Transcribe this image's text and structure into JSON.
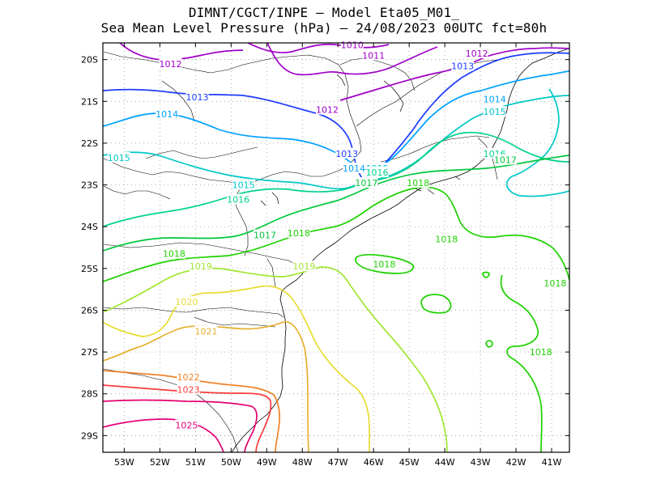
{
  "title": {
    "line1": "DIMNT/CGCT/INPE –  Model Eta05_M01_",
    "line2": "Sea Mean Level Pressure (hPa) – 24/08/2023 00UTC fct=80h"
  },
  "axes": {
    "lat_ticks": [
      "20S",
      "21S",
      "22S",
      "23S",
      "24S",
      "25S",
      "26S",
      "27S",
      "28S",
      "29S"
    ],
    "lon_ticks": [
      "53W",
      "52W",
      "51W",
      "50W",
      "49W",
      "48W",
      "47W",
      "46W",
      "45W",
      "44W",
      "43W",
      "42W",
      "41W"
    ]
  },
  "chart_data": {
    "type": "contour",
    "variable": "Sea Mean Level Pressure (hPa)",
    "lon_range": [
      -53.6,
      -40.5
    ],
    "lat_range": [
      -29.4,
      -19.6
    ],
    "isobars": [
      {
        "value": 1010,
        "color": "#a000c8"
      },
      {
        "value": 1011,
        "color": "#a000c8"
      },
      {
        "value": 1012,
        "color": "#a000c8"
      },
      {
        "value": 1013,
        "color": "#1e3cff"
      },
      {
        "value": 1014,
        "color": "#00a0ff"
      },
      {
        "value": 1015,
        "color": "#00c8c8"
      },
      {
        "value": 1016,
        "color": "#00d28c"
      },
      {
        "value": 1017,
        "color": "#00c83c"
      },
      {
        "value": 1018,
        "color": "#1ed200"
      },
      {
        "value": 1019,
        "color": "#a0e632"
      },
      {
        "value": 1020,
        "color": "#e6dc32"
      },
      {
        "value": 1021,
        "color": "#e6af2d"
      },
      {
        "value": 1022,
        "color": "#f08228"
      },
      {
        "value": 1023,
        "color": "#fa3c3c"
      },
      {
        "value": 1025,
        "color": "#e6007a"
      }
    ],
    "labels": [
      {
        "text": "1010",
        "lon": -46.6,
        "lat": -19.65,
        "color": "#a000c8"
      },
      {
        "text": "1011",
        "lon": -46.0,
        "lat": -19.9,
        "color": "#a000c8"
      },
      {
        "text": "1012",
        "lon": -51.7,
        "lat": -20.1,
        "color": "#a000c8"
      },
      {
        "text": "1012",
        "lon": -47.3,
        "lat": -21.2,
        "color": "#a000c8"
      },
      {
        "text": "1012",
        "lon": -43.1,
        "lat": -19.85,
        "color": "#a000c8"
      },
      {
        "text": "1013",
        "lon": -50.95,
        "lat": -20.9,
        "color": "#1e3cff"
      },
      {
        "text": "1013",
        "lon": -46.75,
        "lat": -22.25,
        "color": "#1e3cff"
      },
      {
        "text": "1013",
        "lon": -43.5,
        "lat": -20.15,
        "color": "#1e3cff"
      },
      {
        "text": "1014",
        "lon": -51.8,
        "lat": -21.3,
        "color": "#00a0ff"
      },
      {
        "text": "1014",
        "lon": -46.55,
        "lat": -22.6,
        "color": "#00a0ff"
      },
      {
        "text": "1014",
        "lon": -42.6,
        "lat": -20.95,
        "color": "#00a0ff"
      },
      {
        "text": "1015",
        "lon": -53.15,
        "lat": -22.35,
        "color": "#00c8c8"
      },
      {
        "text": "1015",
        "lon": -49.65,
        "lat": -23.0,
        "color": "#00c8c8"
      },
      {
        "text": "1015",
        "lon": -45.9,
        "lat": -22.6,
        "color": "#00c8c8"
      },
      {
        "text": "1015",
        "lon": -42.6,
        "lat": -21.25,
        "color": "#00c8c8"
      },
      {
        "text": "1016",
        "lon": -49.8,
        "lat": -23.35,
        "color": "#00d28c"
      },
      {
        "text": "1016",
        "lon": -45.9,
        "lat": -22.7,
        "color": "#00d28c"
      },
      {
        "text": "1016",
        "lon": -42.6,
        "lat": -22.25,
        "color": "#00d28c"
      },
      {
        "text": "1017",
        "lon": -49.05,
        "lat": -24.2,
        "color": "#00c83c"
      },
      {
        "text": "1017",
        "lon": -46.2,
        "lat": -22.95,
        "color": "#00c83c"
      },
      {
        "text": "1017",
        "lon": -42.3,
        "lat": -22.4,
        "color": "#00c83c"
      },
      {
        "text": "1018",
        "lon": -51.6,
        "lat": -24.65,
        "color": "#1ed200"
      },
      {
        "text": "1018",
        "lon": -48.1,
        "lat": -24.15,
        "color": "#1ed200"
      },
      {
        "text": "1018",
        "lon": -44.75,
        "lat": -22.95,
        "color": "#1ed200"
      },
      {
        "text": "1018",
        "lon": -43.95,
        "lat": -24.3,
        "color": "#1ed200"
      },
      {
        "text": "1018",
        "lon": -45.7,
        "lat": -24.9,
        "color": "#1ed200"
      },
      {
        "text": "1018",
        "lon": -40.9,
        "lat": -25.35,
        "color": "#1ed200"
      },
      {
        "text": "1018",
        "lon": -41.3,
        "lat": -27.0,
        "color": "#1ed200"
      },
      {
        "text": "1019",
        "lon": -50.85,
        "lat": -24.95,
        "color": "#a0e632"
      },
      {
        "text": "1019",
        "lon": -47.95,
        "lat": -24.95,
        "color": "#a0e632"
      },
      {
        "text": "1020",
        "lon": -51.25,
        "lat": -25.8,
        "color": "#e6dc32"
      },
      {
        "text": "1021",
        "lon": -50.7,
        "lat": -26.5,
        "color": "#e6af2d"
      },
      {
        "text": "1022",
        "lon": -51.2,
        "lat": -27.6,
        "color": "#f08228"
      },
      {
        "text": "1023",
        "lon": -51.2,
        "lat": -27.9,
        "color": "#fa3c3c"
      },
      {
        "text": "1025",
        "lon": -51.25,
        "lat": -28.75,
        "color": "#e6007a"
      }
    ],
    "grid": "dotted",
    "coastline": true,
    "state_borders": true
  }
}
